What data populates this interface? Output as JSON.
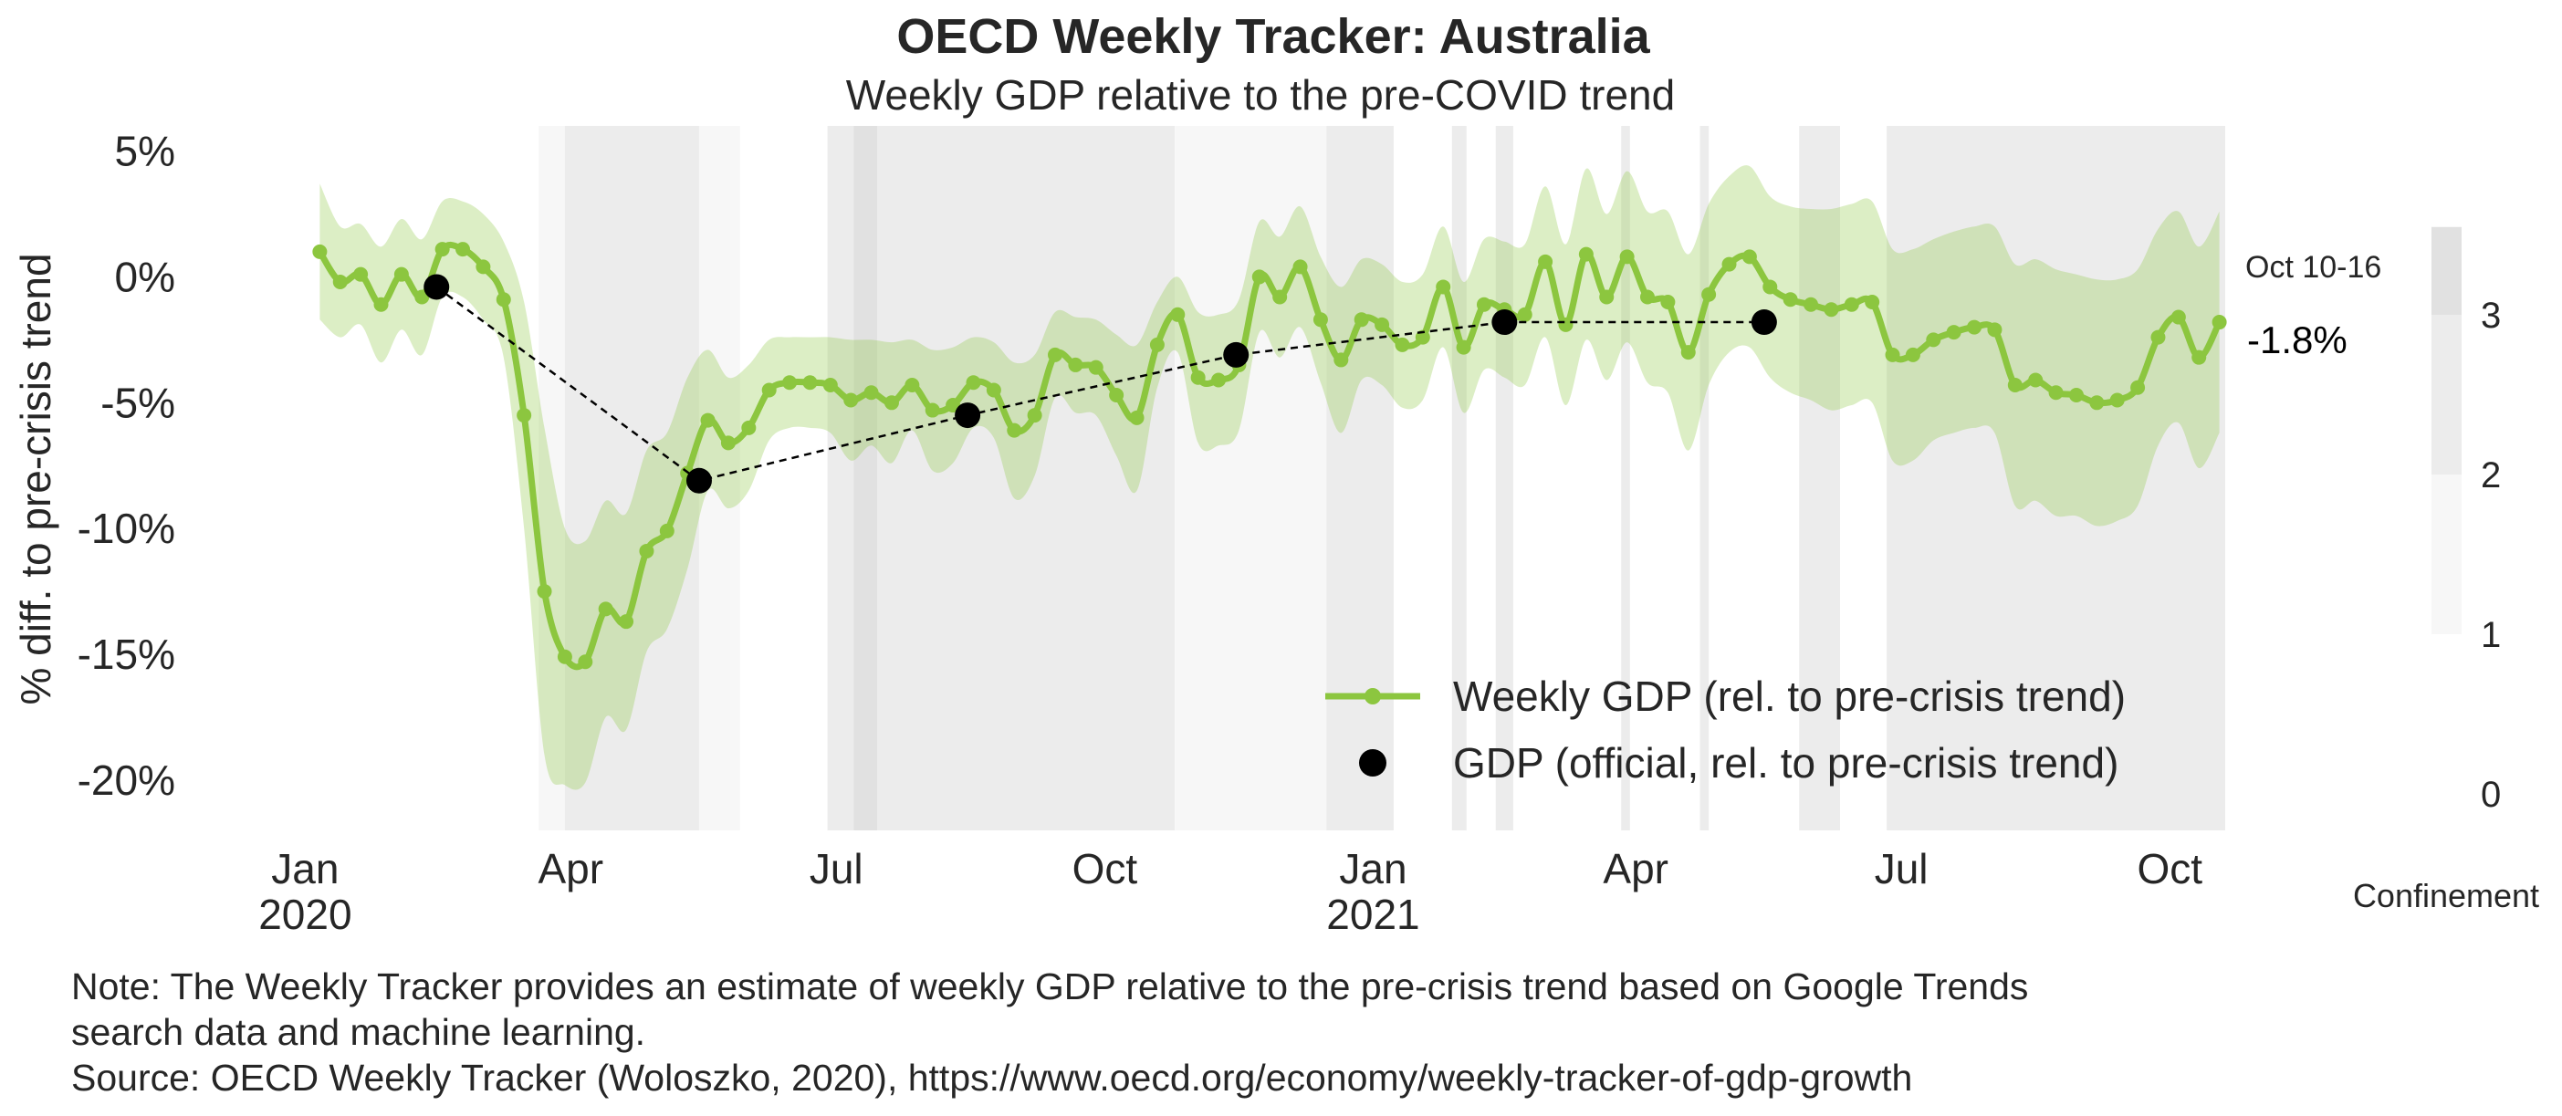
{
  "title": "OECD Weekly Tracker: Australia",
  "subtitle": "Weekly GDP relative to the pre-COVID trend",
  "ylabel": "% diff. to pre-crisis trend",
  "note_lines": [
    "Note: The Weekly Tracker provides an estimate of weekly GDP relative to the pre-crisis trend based on Google Trends",
    "search data and machine learning.",
    "Source: OECD Weekly Tracker (Woloszko, 2020), https://www.oecd.org/economy/weekly-tracker-of-gdp-growth"
  ],
  "annotation": {
    "date": "Oct 10-16",
    "value": "-1.8%"
  },
  "colors": {
    "line": "#8cc63f",
    "band": "#8cc63f",
    "official": "#000000",
    "confinement_1": "#f7f7f7",
    "confinement_2": "#ececec",
    "confinement_3": "#e1e1e1"
  },
  "chart_data": {
    "type": "line",
    "title": "OECD Weekly Tracker: Australia",
    "subtitle": "Weekly GDP relative to the pre-COVID trend",
    "ylabel": "% diff. to pre-crisis trend",
    "ylim": [
      -22,
      6
    ],
    "xlim": [
      "2019-12-25",
      "2021-10-20"
    ],
    "y_ticks": [
      {
        "value": 5,
        "label": "5%"
      },
      {
        "value": 0,
        "label": "0%"
      },
      {
        "value": -5,
        "label": "-5%"
      },
      {
        "value": -10,
        "label": "-10%"
      },
      {
        "value": -15,
        "label": "-15%"
      },
      {
        "value": -20,
        "label": "-20%"
      }
    ],
    "x_ticks": [
      {
        "date": "2020-01-01",
        "label": "Jan",
        "sublabel": "2020"
      },
      {
        "date": "2020-04-01",
        "label": "Apr",
        "sublabel": ""
      },
      {
        "date": "2020-07-01",
        "label": "Jul",
        "sublabel": ""
      },
      {
        "date": "2020-10-01",
        "label": "Oct",
        "sublabel": ""
      },
      {
        "date": "2021-01-01",
        "label": "Jan",
        "sublabel": "2021"
      },
      {
        "date": "2021-04-01",
        "label": "Apr",
        "sublabel": ""
      },
      {
        "date": "2021-07-01",
        "label": "Jul",
        "sublabel": ""
      },
      {
        "date": "2021-10-01",
        "label": "Oct",
        "sublabel": ""
      }
    ],
    "legend": {
      "placement": "lower-right",
      "entries": [
        "Weekly GDP (rel. to pre-crisis trend)",
        "GDP (official, rel. to pre-crisis trend)"
      ]
    },
    "series": [
      {
        "name": "Weekly GDP (rel. to pre-crisis trend)",
        "start_date": "2020-01-06",
        "step_days": 7,
        "values": [
          1.0,
          -0.2,
          0.1,
          -1.1,
          0.1,
          -0.8,
          1.1,
          1.1,
          0.4,
          -0.9,
          -5.5,
          -12.5,
          -15.1,
          -15.3,
          -13.2,
          -13.7,
          -10.9,
          -10.1,
          -7.8,
          -5.7,
          -6.6,
          -6.0,
          -4.5,
          -4.2,
          -4.2,
          -4.3,
          -4.9,
          -4.6,
          -5.0,
          -4.3,
          -5.3,
          -5.1,
          -4.2,
          -4.5,
          -6.1,
          -5.5,
          -3.1,
          -3.5,
          -3.6,
          -4.7,
          -5.6,
          -2.7,
          -1.5,
          -4.0,
          -4.1,
          -3.5,
          0.0,
          -0.8,
          0.4,
          -1.7,
          -3.3,
          -1.7,
          -1.9,
          -2.7,
          -2.4,
          -0.4,
          -2.8,
          -1.1,
          -1.3,
          -1.5,
          0.6,
          -1.9,
          0.9,
          -0.8,
          0.8,
          -0.8,
          -1.0,
          -3.0,
          -0.7,
          0.5,
          0.8,
          -0.4,
          -0.9,
          -1.1,
          -1.3,
          -1.1,
          -1.0,
          -3.1,
          -3.1,
          -2.5,
          -2.2,
          -2.0,
          -2.1,
          -4.3,
          -4.1,
          -4.6,
          -4.7,
          -5.0,
          -4.9,
          -4.4,
          -2.4,
          -1.6,
          -3.2,
          -1.8
        ]
      },
      {
        "name": "GDP (official, rel. to pre-crisis trend)",
        "points": [
          {
            "date": "2020-02-15",
            "value": -0.4
          },
          {
            "date": "2020-05-15",
            "value": -8.1
          },
          {
            "date": "2020-08-15",
            "value": -5.5
          },
          {
            "date": "2020-11-15",
            "value": -3.1
          },
          {
            "date": "2021-02-15",
            "value": -1.8
          },
          {
            "date": "2021-05-15",
            "value": -1.8
          }
        ]
      }
    ],
    "band_half_width": [
      2.7,
      2.2,
      2.0,
      2.3,
      2.2,
      2.3,
      1.9,
      1.9,
      2.1,
      2.3,
      4.5,
      6.5,
      5.1,
      4.8,
      4.3,
      4.3,
      4.0,
      3.9,
      3.8,
      2.8,
      2.6,
      2.5,
      2.0,
      1.8,
      1.8,
      1.9,
      2.4,
      2.1,
      2.4,
      1.8,
      2.4,
      2.3,
      1.8,
      1.9,
      2.7,
      2.4,
      1.7,
      1.9,
      1.9,
      2.4,
      2.9,
      1.7,
      1.5,
      2.6,
      2.6,
      2.6,
      2.2,
      2.4,
      2.4,
      2.5,
      2.9,
      2.4,
      2.4,
      2.5,
      2.5,
      2.4,
      2.6,
      2.6,
      2.7,
      2.8,
      3.0,
      3.2,
      3.4,
      3.3,
      3.4,
      3.4,
      3.6,
      3.9,
      3.6,
      3.5,
      3.6,
      3.6,
      3.7,
      3.8,
      4.0,
      4.0,
      4.0,
      4.2,
      4.2,
      4.0,
      4.0,
      4.0,
      4.1,
      4.8,
      4.8,
      4.9,
      4.8,
      4.9,
      4.8,
      4.7,
      4.3,
      4.2,
      4.4,
      4.4
    ],
    "confinement": {
      "label": "Confinement",
      "ticks": [
        0,
        1,
        2,
        3
      ],
      "periods": [
        {
          "start": "2020-03-21",
          "end": "2020-03-30",
          "level": 1
        },
        {
          "start": "2020-03-30",
          "end": "2020-05-15",
          "level": 2
        },
        {
          "start": "2020-05-15",
          "end": "2020-05-29",
          "level": 1
        },
        {
          "start": "2020-06-28",
          "end": "2020-07-07",
          "level": 2
        },
        {
          "start": "2020-07-07",
          "end": "2020-07-15",
          "level": 3
        },
        {
          "start": "2020-07-15",
          "end": "2020-10-25",
          "level": 2
        },
        {
          "start": "2020-10-25",
          "end": "2020-12-16",
          "level": 1
        },
        {
          "start": "2020-12-16",
          "end": "2021-01-08",
          "level": 2
        },
        {
          "start": "2021-01-28",
          "end": "2021-02-02",
          "level": 2
        },
        {
          "start": "2021-02-12",
          "end": "2021-02-18",
          "level": 2
        },
        {
          "start": "2021-03-27",
          "end": "2021-03-30",
          "level": 2
        },
        {
          "start": "2021-04-23",
          "end": "2021-04-26",
          "level": 2
        },
        {
          "start": "2021-05-27",
          "end": "2021-06-10",
          "level": 2
        },
        {
          "start": "2021-06-26",
          "end": "2021-10-20",
          "level": 2
        }
      ]
    }
  }
}
